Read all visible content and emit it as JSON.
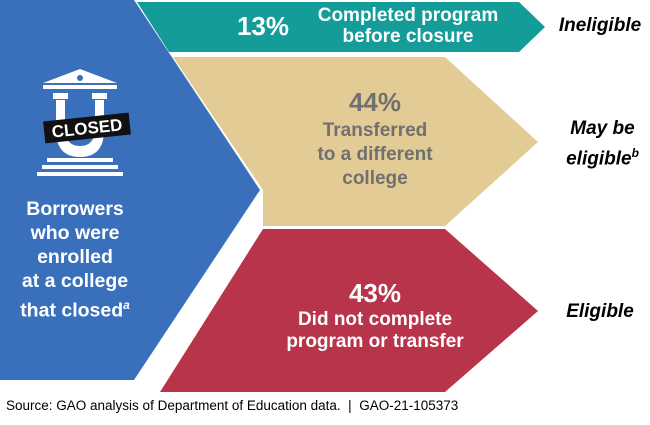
{
  "colors": {
    "left_block": "#3a70bb",
    "teal": "#149c98",
    "tan": "#e2cb94",
    "red": "#b7344a",
    "tan_text": "#707070"
  },
  "left": {
    "icon": "closed-college-icon",
    "badge": "CLOSED",
    "text_lines": [
      "Borrowers",
      "who were",
      "enrolled",
      "at a college",
      "that closed"
    ],
    "footnote": "a"
  },
  "bars": [
    {
      "pct": "13%",
      "lines": [
        "Completed program",
        "before closure"
      ],
      "outcome": "Ineligible",
      "outcome_lines": [
        "Ineligible"
      ],
      "footnote": ""
    },
    {
      "pct": "44%",
      "lines": [
        "Transferred",
        "to a different",
        "college"
      ],
      "outcome": "May be eligible",
      "outcome_lines": [
        "May be",
        "eligible"
      ],
      "footnote": "b"
    },
    {
      "pct": "43%",
      "lines": [
        "Did not complete",
        "program or transfer"
      ],
      "outcome": "Eligible",
      "outcome_lines": [
        "Eligible"
      ],
      "footnote": ""
    }
  ],
  "source": "Source: GAO analysis of Department of Education data.  |  GAO-21-105373"
}
